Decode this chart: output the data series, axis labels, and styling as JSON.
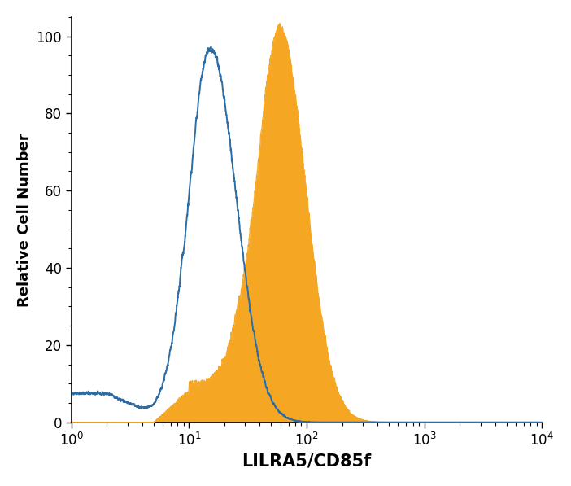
{
  "title": "",
  "xlabel": "LILRA5/CD85f",
  "ylabel": "Relative Cell Number",
  "xlim": [
    1.0,
    10000.0
  ],
  "ylim": [
    0,
    105
  ],
  "yticks": [
    0,
    20,
    40,
    60,
    80,
    100
  ],
  "background_color": "#ffffff",
  "blue_color": "#2e6da4",
  "orange_color": "#f5a623",
  "orange_fill_alpha": 1.0,
  "blue_linewidth": 1.4,
  "orange_linewidth": 0.9,
  "xlabel_fontsize": 15,
  "ylabel_fontsize": 13,
  "tick_fontsize": 12,
  "blue_peak_log": 1.18,
  "blue_peak_height": 97,
  "orange_peak_log": 1.77,
  "orange_peak_height": 102
}
